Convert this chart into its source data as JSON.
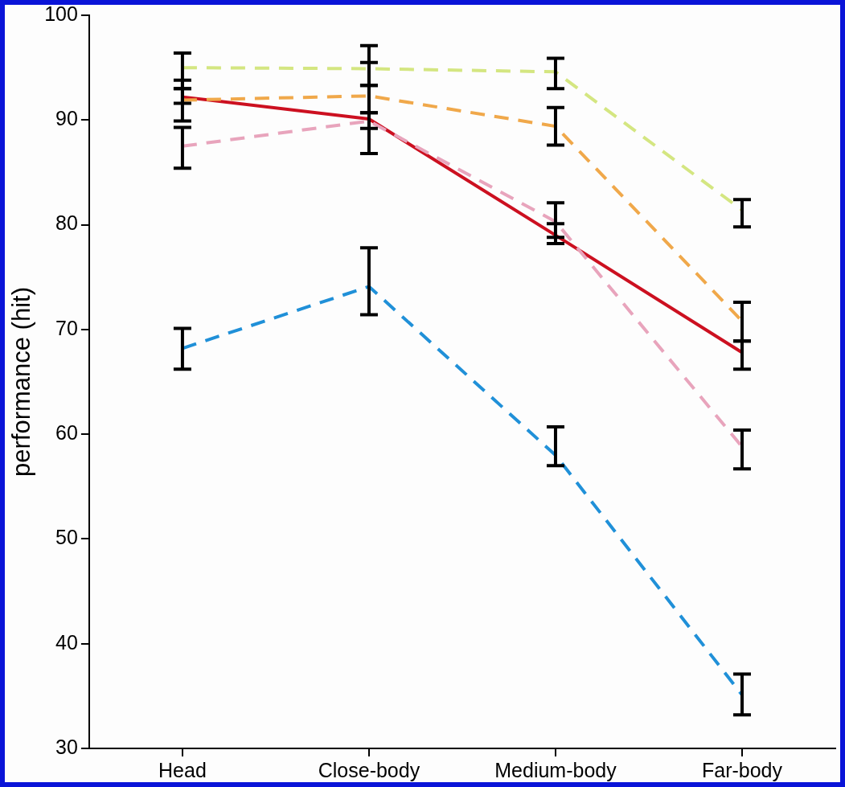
{
  "chart_data": {
    "type": "line",
    "ylabel": "performance (hit)",
    "categories": [
      "Head",
      "Close-body",
      "Medium-body",
      "Far-body"
    ],
    "ylim": [
      30,
      100
    ],
    "yticks": [
      30,
      40,
      50,
      60,
      70,
      80,
      90,
      100
    ],
    "grid": false,
    "legend": false,
    "marker": "none",
    "series": [
      {
        "color": "#d4e681",
        "line_style": "dashed",
        "values": [
          95.0,
          94.9,
          94.6,
          81.4
        ],
        "errors": [
          [
            93.0,
            96.4
          ],
          [
            93.3,
            97.1
          ],
          [
            93.0,
            95.9
          ],
          [
            79.8,
            82.4
          ]
        ]
      },
      {
        "color": "#f0a84a",
        "line_style": "dashed",
        "values": [
          91.9,
          92.3,
          89.4,
          70.8
        ],
        "errors": [
          [
            91.6,
            93.0
          ],
          [
            90.7,
            95.5
          ],
          [
            87.6,
            91.2
          ],
          [
            68.9,
            72.6
          ]
        ]
      },
      {
        "color": "#e8a4bc",
        "line_style": "dashed",
        "values": [
          87.5,
          89.9,
          80.3,
          58.8
        ],
        "errors": [
          [
            85.4,
            89.3
          ],
          [
            89.2,
            90.7
          ],
          [
            78.8,
            82.1
          ],
          [
            56.7,
            60.4
          ]
        ]
      },
      {
        "color": "#2090d8",
        "line_style": "dashed",
        "values": [
          68.2,
          74.1,
          58.0,
          35.1
        ],
        "errors": [
          [
            66.2,
            70.1
          ],
          [
            71.4,
            77.8
          ],
          [
            57.0,
            60.7
          ],
          [
            33.2,
            37.1
          ]
        ]
      },
      {
        "color": "#cc1020",
        "line_style": "solid",
        "values": [
          92.2,
          90.1,
          79.0,
          67.8
        ],
        "errors": [
          [
            89.9,
            93.8
          ],
          [
            86.8,
            93.3
          ],
          [
            78.2,
            80.1
          ],
          [
            66.2,
            68.9
          ]
        ]
      }
    ]
  }
}
